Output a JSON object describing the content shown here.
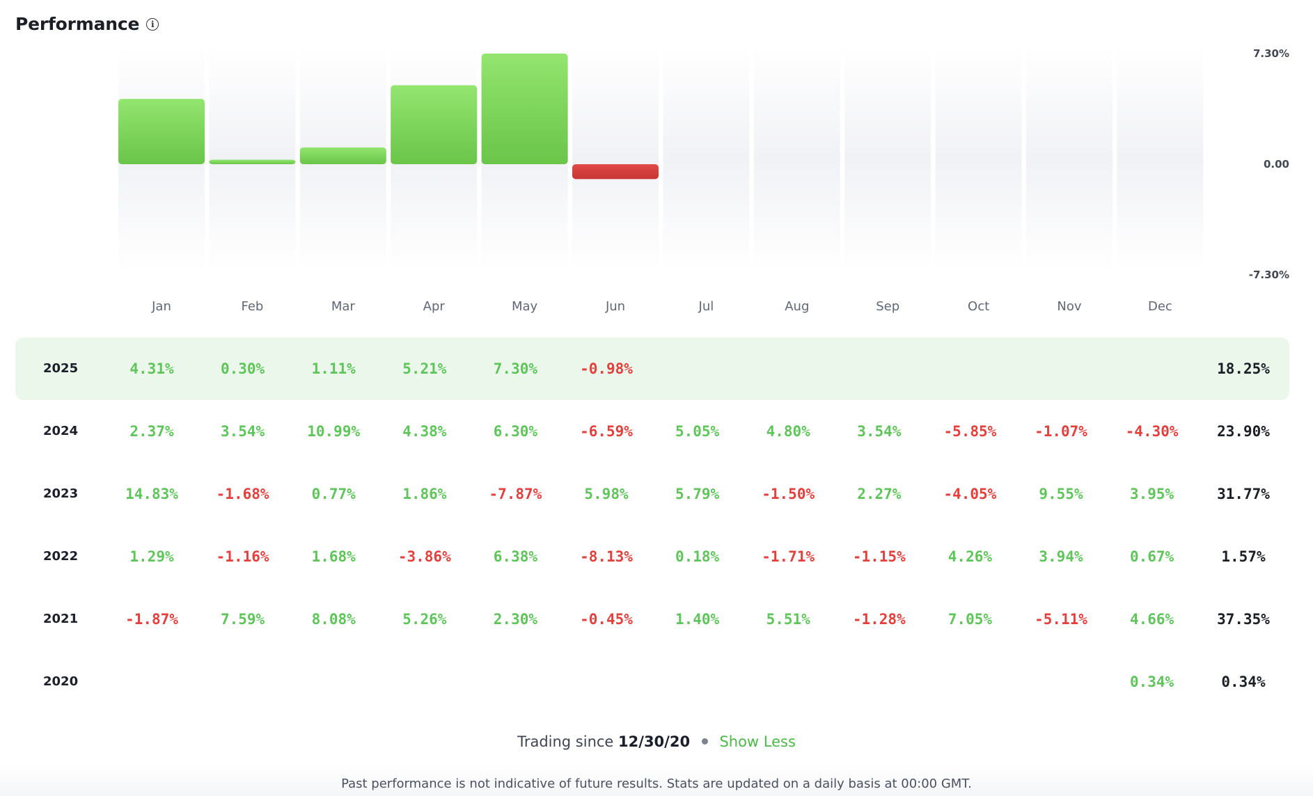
{
  "header": {
    "title": "Performance",
    "info_icon": "info-icon"
  },
  "colors": {
    "positive": "#5fc55b",
    "negative": "#e3403d",
    "bar_positive_top": "#93e56f",
    "bar_positive_bottom": "#6ac549",
    "bar_negative_top": "#e04a48",
    "bar_negative_bottom": "#c83431",
    "highlight_row": "#eaf7ea"
  },
  "chart_data": {
    "type": "bar",
    "categories": [
      "Jan",
      "Feb",
      "Mar",
      "Apr",
      "May",
      "Jun",
      "Jul",
      "Aug",
      "Sep",
      "Oct",
      "Nov",
      "Dec"
    ],
    "values": [
      4.31,
      0.3,
      1.11,
      5.21,
      7.3,
      -0.98,
      null,
      null,
      null,
      null,
      null,
      null
    ],
    "ylim": [
      -7.3,
      7.3
    ],
    "yticks": [
      "7.30%",
      "0.00",
      "-7.30%"
    ],
    "title": "",
    "xlabel": "",
    "ylabel": ""
  },
  "table": {
    "rows": [
      {
        "year": "2025",
        "highlight": true,
        "months": [
          "4.31%",
          "0.30%",
          "1.11%",
          "5.21%",
          "7.30%",
          "-0.98%",
          "",
          "",
          "",
          "",
          "",
          ""
        ],
        "total": "18.25%"
      },
      {
        "year": "2024",
        "highlight": false,
        "months": [
          "2.37%",
          "3.54%",
          "10.99%",
          "4.38%",
          "6.30%",
          "-6.59%",
          "5.05%",
          "4.80%",
          "3.54%",
          "-5.85%",
          "-1.07%",
          "-4.30%"
        ],
        "total": "23.90%"
      },
      {
        "year": "2023",
        "highlight": false,
        "months": [
          "14.83%",
          "-1.68%",
          "0.77%",
          "1.86%",
          "-7.87%",
          "5.98%",
          "5.79%",
          "-1.50%",
          "2.27%",
          "-4.05%",
          "9.55%",
          "3.95%"
        ],
        "total": "31.77%"
      },
      {
        "year": "2022",
        "highlight": false,
        "months": [
          "1.29%",
          "-1.16%",
          "1.68%",
          "-3.86%",
          "6.38%",
          "-8.13%",
          "0.18%",
          "-1.71%",
          "-1.15%",
          "4.26%",
          "3.94%",
          "0.67%"
        ],
        "total": "1.57%"
      },
      {
        "year": "2021",
        "highlight": false,
        "months": [
          "-1.87%",
          "7.59%",
          "8.08%",
          "5.26%",
          "2.30%",
          "-0.45%",
          "1.40%",
          "5.51%",
          "-1.28%",
          "7.05%",
          "-5.11%",
          "4.66%"
        ],
        "total": "37.35%"
      },
      {
        "year": "2020",
        "highlight": false,
        "months": [
          "",
          "",
          "",
          "",
          "",
          "",
          "",
          "",
          "",
          "",
          "",
          "0.34%"
        ],
        "total": "0.34%"
      }
    ]
  },
  "footer": {
    "trading_since_label": "Trading since",
    "trading_since_date": "12/30/20",
    "show_less_label": "Show Less",
    "disclaimer": "Past performance is not indicative of future results. Stats are updated on a daily basis at 00:00 GMT."
  }
}
